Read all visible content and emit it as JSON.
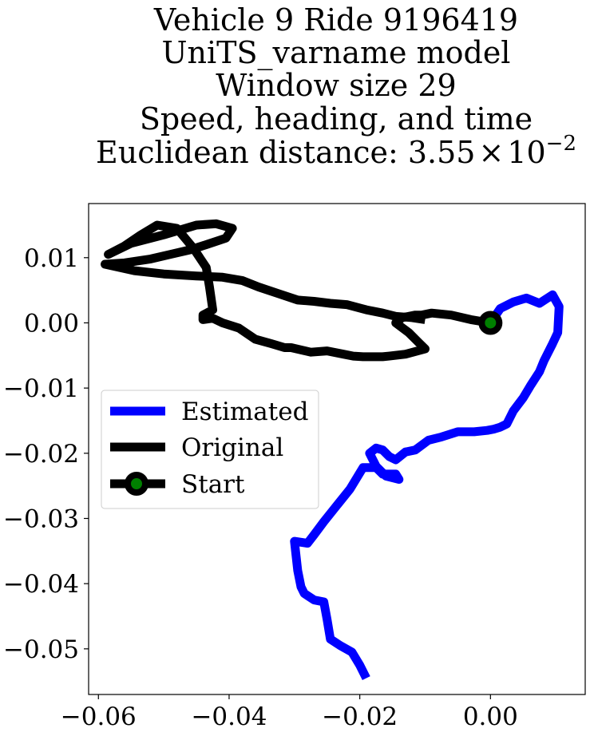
{
  "title_lines": [
    "Vehicle 9 Ride 9196419",
    "UniTS_varname model",
    "Window size 29",
    "Speed, heading, and time",
    "Euclidean distance: "
  ],
  "title_value": "3.55",
  "title_times": "×",
  "title_base": "10",
  "title_exp": "−2",
  "chart_data": {
    "type": "line",
    "xlim": [
      -0.0615,
      0.0145
    ],
    "ylim": [
      -0.057,
      0.0183
    ],
    "xticks": [
      -0.06,
      -0.04,
      -0.02,
      0.0
    ],
    "xtick_labels": [
      "−0.06",
      "−0.04",
      "−0.02",
      "0.00"
    ],
    "yticks": [
      0.01,
      0.0,
      -0.01,
      -0.02,
      -0.03,
      -0.04,
      -0.05
    ],
    "ytick_labels": [
      "0.01",
      "0.00",
      "−0.01",
      "−0.02",
      "−0.03",
      "−0.04",
      "−0.05"
    ],
    "grid": false,
    "legend_position": "center-left",
    "series": [
      {
        "name": "Estimated",
        "color": "#0000ff",
        "x": [
          0.0,
          0.0015,
          0.0035,
          0.0055,
          0.0075,
          0.0095,
          0.0105,
          0.0103,
          0.0095,
          0.0082,
          0.0075,
          0.0062,
          0.005,
          0.0035,
          0.0025,
          0.0015,
          0.0005,
          -0.0005,
          -0.0025,
          -0.005,
          -0.0075,
          -0.0095,
          -0.0115,
          -0.013,
          -0.0145,
          -0.0155,
          -0.0165,
          -0.0175,
          -0.0185,
          -0.0175,
          -0.016,
          -0.014,
          -0.0145,
          -0.0165,
          -0.0175,
          -0.0195,
          -0.0215,
          -0.0235,
          -0.0255,
          -0.027,
          -0.028,
          -0.03,
          -0.0295,
          -0.029,
          -0.0285,
          -0.027,
          -0.0255,
          -0.025,
          -0.0245,
          -0.023,
          -0.0212,
          -0.02,
          -0.019
        ],
        "y": [
          0.0,
          0.0022,
          0.0032,
          0.0038,
          0.003,
          0.0043,
          0.0025,
          -0.0015,
          -0.0032,
          -0.0058,
          -0.0075,
          -0.0095,
          -0.0115,
          -0.0135,
          -0.0155,
          -0.016,
          -0.0163,
          -0.0165,
          -0.0167,
          -0.0167,
          -0.0175,
          -0.018,
          -0.0195,
          -0.0198,
          -0.021,
          -0.0205,
          -0.0195,
          -0.0192,
          -0.02,
          -0.022,
          -0.0235,
          -0.024,
          -0.0232,
          -0.0232,
          -0.0222,
          -0.0222,
          -0.0255,
          -0.028,
          -0.0305,
          -0.0325,
          -0.0338,
          -0.0335,
          -0.038,
          -0.0405,
          -0.0415,
          -0.0425,
          -0.0428,
          -0.0455,
          -0.0485,
          -0.0495,
          -0.0505,
          -0.0525,
          -0.0545
        ]
      },
      {
        "name": "Original",
        "color": "#000000",
        "x": [
          0.0,
          -0.003,
          -0.006,
          -0.009,
          -0.0105,
          -0.0115,
          -0.0135,
          -0.0145,
          -0.0125,
          -0.011,
          -0.01,
          -0.013,
          -0.0155,
          -0.0165,
          -0.018,
          -0.0195,
          -0.021,
          -0.0225,
          -0.025,
          -0.0275,
          -0.0305,
          -0.0315,
          -0.0335,
          -0.036,
          -0.0385,
          -0.041,
          -0.0425,
          -0.044,
          -0.044,
          -0.0425,
          -0.043,
          -0.0435,
          -0.0455,
          -0.048,
          -0.051,
          -0.0535,
          -0.056,
          -0.0585,
          -0.055,
          -0.05,
          -0.045,
          -0.042,
          -0.0395,
          -0.0405,
          -0.0435,
          -0.046,
          -0.049,
          -0.052,
          -0.056,
          -0.059,
          -0.0545,
          -0.05,
          -0.045,
          -0.041,
          -0.038,
          -0.0355,
          -0.0325,
          -0.0295,
          -0.027,
          -0.0245,
          -0.022,
          -0.019,
          -0.0165,
          -0.0145,
          -0.012,
          -0.01
        ],
        "y": [
          0.0,
          0.0005,
          0.0012,
          0.0015,
          0.0012,
          0.0012,
          0.0008,
          0.0,
          -0.0015,
          -0.003,
          -0.004,
          -0.0048,
          -0.0051,
          -0.0052,
          -0.0052,
          -0.0052,
          -0.0051,
          -0.0048,
          -0.0043,
          -0.0045,
          -0.0038,
          -0.0038,
          -0.0032,
          -0.0025,
          -0.0008,
          0.0,
          0.0007,
          0.0005,
          0.0012,
          0.002,
          0.0055,
          0.0085,
          0.0115,
          0.0145,
          0.015,
          0.0135,
          0.0118,
          0.0105,
          0.0122,
          0.0135,
          0.015,
          0.0152,
          0.0145,
          0.013,
          0.012,
          0.0112,
          0.0105,
          0.0098,
          0.0092,
          0.009,
          0.008,
          0.0075,
          0.0072,
          0.007,
          0.0065,
          0.0055,
          0.0045,
          0.0035,
          0.0033,
          0.003,
          0.0028,
          0.002,
          0.0015,
          0.001,
          0.0008,
          0.0005
        ]
      }
    ],
    "legend": [
      "Estimated",
      "Original",
      "Start"
    ],
    "start_point": {
      "x": 0.0,
      "y": 0.0,
      "marker_face": "#008000",
      "marker_edge": "#000000"
    }
  }
}
